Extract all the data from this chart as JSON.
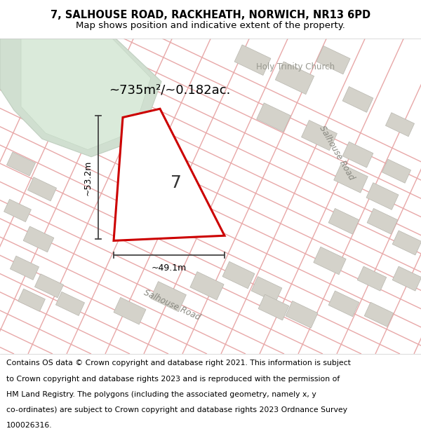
{
  "title_line1": "7, SALHOUSE ROAD, RACKHEATH, NORWICH, NR13 6PD",
  "title_line2": "Map shows position and indicative extent of the property.",
  "footer_lines": [
    "Contains OS data © Crown copyright and database right 2021. This information is subject",
    "to Crown copyright and database rights 2023 and is reproduced with the permission of",
    "HM Land Registry. The polygons (including the associated geometry, namely x, y",
    "co-ordinates) are subject to Crown copyright and database rights 2023 Ordnance Survey",
    "100026316."
  ],
  "area_label": "~735m²/~0.182ac.",
  "dim_width": "~49.1m",
  "dim_height": "~53.2m",
  "plot_number": "7",
  "church_label": "Holy Trinity Church",
  "road_label_bottom": "Salhouse Road",
  "road_label_right": "Salhouse Road",
  "map_bg": "#f0efeb",
  "road_line_color": "#e8a8a8",
  "green_fill": "#d0dfd0",
  "green_edge": "#c0cfc0",
  "grey_block": "#d4d2ca",
  "grey_edge": "#b8b6ae",
  "plot_fill": "#ffffff",
  "plot_edge": "#cc0000",
  "dim_color": "#444444",
  "white_bg": "#ffffff",
  "title_fs": 10.5,
  "subtitle_fs": 9.5,
  "footer_fs": 7.8,
  "area_fs": 13,
  "label_fs": 9,
  "church_fs": 8.5,
  "number_fs": 18
}
